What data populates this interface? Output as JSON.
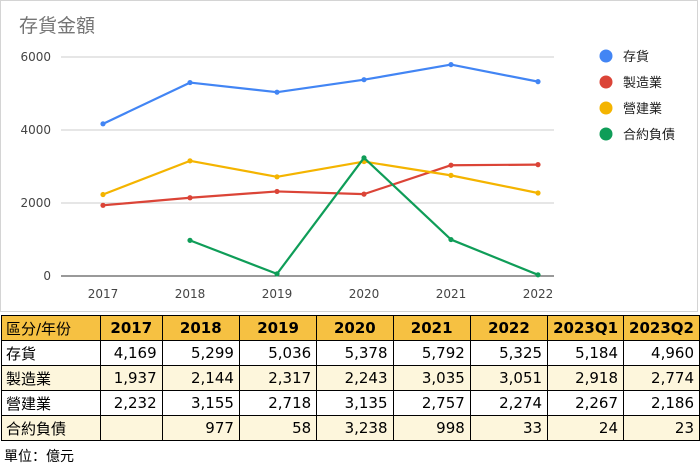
{
  "chart_data": {
    "type": "line",
    "title": "存貨金額",
    "categories": [
      "2017",
      "2018",
      "2019",
      "2020",
      "2021",
      "2022"
    ],
    "ylim": [
      0,
      6000
    ],
    "y_ticks": [
      "0",
      "2000",
      "4000",
      "6000"
    ],
    "legend_position": "right",
    "grid": true,
    "series": [
      {
        "name": "存貨",
        "color": "#4285f4",
        "values": [
          4169,
          5299,
          5036,
          5378,
          5792,
          5325
        ]
      },
      {
        "name": "製造業",
        "color": "#db4437",
        "values": [
          1937,
          2144,
          2317,
          2243,
          3035,
          3051
        ]
      },
      {
        "name": "營建業",
        "color": "#f4b400",
        "values": [
          2232,
          3155,
          2718,
          3135,
          2757,
          2274
        ]
      },
      {
        "name": "合約負債",
        "color": "#0f9d58",
        "values": [
          null,
          977,
          58,
          3238,
          998,
          33
        ]
      }
    ]
  },
  "table": {
    "corner": "區分/年份",
    "headers": [
      "2017",
      "2018",
      "2019",
      "2020",
      "2021",
      "2022",
      "2023Q1",
      "2023Q2"
    ],
    "rows": [
      {
        "label": "存貨",
        "cells": [
          "4,169",
          "5,299",
          "5,036",
          "5,378",
          "5,792",
          "5,325",
          "5,184",
          "4,960"
        ]
      },
      {
        "label": "製造業",
        "cells": [
          "1,937",
          "2,144",
          "2,317",
          "2,243",
          "3,035",
          "3,051",
          "2,918",
          "2,774"
        ]
      },
      {
        "label": "營建業",
        "cells": [
          "2,232",
          "3,155",
          "2,718",
          "3,135",
          "2,757",
          "2,274",
          "2,267",
          "2,186"
        ]
      },
      {
        "label": "合約負債",
        "cells": [
          "",
          "977",
          "58",
          "3,238",
          "998",
          "33",
          "24",
          "23"
        ]
      }
    ]
  },
  "unit_note": "單位：億元"
}
